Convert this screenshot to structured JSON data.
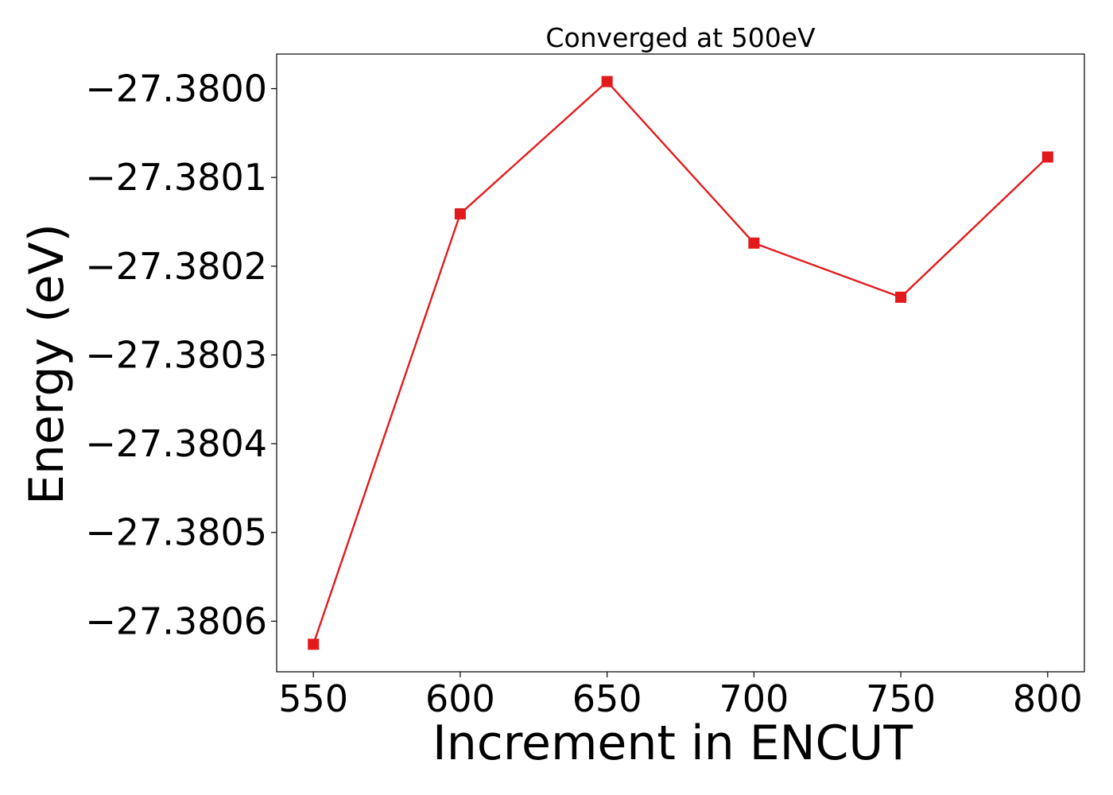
{
  "chart_data": {
    "type": "line",
    "title": "Converged at 500eV",
    "xlabel": "Increment in ENCUT",
    "ylabel": "Energy (eV)",
    "x": [
      550,
      600,
      650,
      700,
      750,
      800
    ],
    "series": [
      {
        "values": [
          -27.380626,
          -27.380141,
          -27.379992,
          -27.380174,
          -27.380235,
          -27.380077
        ],
        "color": "#e31a1c",
        "marker": "square"
      }
    ],
    "xticks": [
      550,
      600,
      650,
      700,
      750,
      800
    ],
    "xtick_labels": [
      "550",
      "600",
      "650",
      "700",
      "750",
      "800"
    ],
    "yticks": [
      -27.38,
      -27.3801,
      -27.3802,
      -27.3803,
      -27.3804,
      -27.3805,
      -27.3806
    ],
    "ytick_labels": [
      "−27.3800",
      "−27.3801",
      "−27.3802",
      "−27.3803",
      "−27.3804",
      "−27.3805",
      "−27.3806"
    ],
    "xlim": [
      537.5,
      812.5
    ],
    "ylim": [
      -27.380657,
      -27.379961
    ],
    "grid": false,
    "legend": "none"
  }
}
